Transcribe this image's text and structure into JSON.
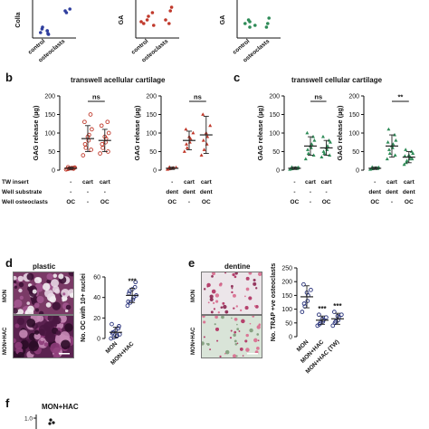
{
  "colors": {
    "red": "#c0392b",
    "green": "#2e8b57",
    "blue": "#2f3e9e",
    "navy": "#27317a"
  },
  "panels": {
    "a": {
      "ylabel_fragments": [
        "Colla",
        "GA",
        "GA"
      ]
    },
    "b": {
      "label": "b",
      "title": "transwell acellular cartilage"
    },
    "c": {
      "label": "c",
      "title": "transwell cellular cartilage"
    },
    "d": {
      "label": "d",
      "title": "plastic",
      "mic_labels": [
        "MON",
        "MON+HAC"
      ]
    },
    "e": {
      "label": "e",
      "title": "dentine",
      "mic_labels": [
        "MON",
        "MON+HAC"
      ]
    },
    "f": {
      "label": "f",
      "title": "MON+HAC",
      "tick": "1.0"
    }
  },
  "table_rows": [
    "TW insert",
    "Well substrate",
    "Well osteoclasts"
  ],
  "chart_data": [
    {
      "type": "scatter",
      "id": "a1",
      "categories": [
        "control",
        "osteoclasts"
      ],
      "color": "#2f3e9e",
      "ylabel": "Colla",
      "points": [
        [
          1.0,
          1.5
        ],
        [
          1.2,
          2.0
        ],
        [
          0.8,
          2.5
        ],
        [
          1.1,
          1.0
        ],
        [
          0.9,
          2.0
        ],
        [
          1.3,
          1.2
        ],
        [
          1.0,
          3.0
        ],
        [
          2.0,
          7.5
        ],
        [
          2.1,
          8.0
        ],
        [
          1.9,
          7.0
        ]
      ],
      "ylim": [
        0,
        10
      ]
    },
    {
      "type": "scatter",
      "id": "a2",
      "categories": [
        "control",
        "osteoclasts"
      ],
      "color": "#c0392b",
      "ylabel": "GA",
      "points": [
        [
          1.0,
          4.0
        ],
        [
          1.1,
          6.0
        ],
        [
          0.9,
          5.0
        ],
        [
          1.2,
          3.5
        ],
        [
          1.0,
          7.0
        ],
        [
          0.8,
          4.5
        ],
        [
          2.0,
          5.0
        ],
        [
          2.1,
          7.5
        ],
        [
          1.9,
          4.0
        ],
        [
          2.0,
          8.5
        ]
      ],
      "ylim": [
        0,
        10
      ]
    },
    {
      "type": "scatter",
      "id": "a3",
      "categories": [
        "control",
        "osteoclasts"
      ],
      "color": "#2e8b57",
      "ylabel": "GA",
      "points": [
        [
          1.0,
          4.0
        ],
        [
          1.1,
          3.0
        ],
        [
          0.9,
          5.0
        ],
        [
          1.2,
          3.5
        ],
        [
          0.8,
          4.5
        ],
        [
          2.0,
          3.0
        ],
        [
          2.1,
          5.5
        ],
        [
          1.9,
          4.0
        ]
      ],
      "ylim": [
        0,
        10
      ]
    },
    {
      "type": "scatter",
      "id": "b1",
      "ylabel": "GAG release (µg)",
      "ylim": [
        0,
        200
      ],
      "color": "#c0392b",
      "groups": [
        {
          "x": 1,
          "mean": 5,
          "sd": 3,
          "values": [
            2,
            4,
            5,
            6,
            7,
            3,
            8,
            5,
            4,
            6
          ]
        },
        {
          "x": 2,
          "mean": 85,
          "sd": 35,
          "values": [
            40,
            60,
            80,
            95,
            110,
            130,
            70,
            90,
            150,
            55
          ]
        },
        {
          "x": 3,
          "mean": 80,
          "sd": 30,
          "values": [
            45,
            60,
            75,
            85,
            100,
            120,
            70,
            90,
            130,
            50
          ]
        }
      ],
      "significance": [
        {
          "from": 2,
          "to": 3,
          "label": "ns"
        }
      ],
      "conditions": [
        [
          "-",
          "cart",
          "cart"
        ],
        [
          "-",
          "-",
          "-"
        ],
        [
          "OC",
          "-",
          "OC"
        ]
      ]
    },
    {
      "type": "scatter",
      "id": "b2",
      "ylabel": "GAG release (µg)",
      "ylim": [
        0,
        200
      ],
      "color": "#c0392b",
      "groups": [
        {
          "x": 1,
          "mean": 5,
          "sd": 3,
          "values": [
            2,
            4,
            5,
            6,
            7,
            3,
            8,
            5
          ]
        },
        {
          "x": 2,
          "mean": 80,
          "sd": 25,
          "values": [
            50,
            60,
            75,
            85,
            100,
            110,
            70,
            90
          ]
        },
        {
          "x": 3,
          "mean": 95,
          "sd": 50,
          "values": [
            40,
            55,
            70,
            90,
            120,
            150,
            80,
            100
          ]
        }
      ],
      "significance": [
        {
          "from": 2,
          "to": 3,
          "label": "ns"
        }
      ],
      "conditions": [
        [
          "-",
          "cart",
          "cart"
        ],
        [
          "dent",
          "dent",
          "dent"
        ],
        [
          "OC",
          "-",
          "OC"
        ]
      ]
    },
    {
      "type": "scatter",
      "id": "c1",
      "ylabel": "GAG release (µg)",
      "ylim": [
        0,
        200
      ],
      "color": "#2e8b57",
      "groups": [
        {
          "x": 1,
          "mean": 5,
          "sd": 3,
          "values": [
            2,
            4,
            5,
            6,
            7,
            3,
            8,
            5,
            4,
            6
          ]
        },
        {
          "x": 2,
          "mean": 65,
          "sd": 25,
          "values": [
            30,
            45,
            60,
            70,
            80,
            100,
            55,
            65,
            90,
            40
          ]
        },
        {
          "x": 3,
          "mean": 60,
          "sd": 20,
          "values": [
            35,
            45,
            55,
            65,
            75,
            90,
            50,
            60,
            80,
            40
          ]
        }
      ],
      "significance": [
        {
          "from": 2,
          "to": 3,
          "label": "ns"
        }
      ],
      "conditions": [
        [
          "-",
          "cart",
          "cart"
        ],
        [
          "-",
          "-",
          "-"
        ],
        [
          "OC",
          "-",
          "OC"
        ]
      ]
    },
    {
      "type": "scatter",
      "id": "c2",
      "ylabel": "GAG release (µg)",
      "ylim": [
        0,
        200
      ],
      "color": "#2e8b57",
      "groups": [
        {
          "x": 1,
          "mean": 5,
          "sd": 3,
          "values": [
            2,
            4,
            5,
            6,
            7,
            3,
            8,
            5,
            4,
            6
          ]
        },
        {
          "x": 2,
          "mean": 65,
          "sd": 30,
          "values": [
            30,
            45,
            60,
            70,
            80,
            110,
            55,
            65,
            95,
            40,
            75
          ]
        },
        {
          "x": 3,
          "mean": 35,
          "sd": 15,
          "values": [
            15,
            25,
            30,
            35,
            45,
            55,
            20,
            40,
            50,
            30,
            38
          ]
        }
      ],
      "significance": [
        {
          "from": 2,
          "to": 3,
          "label": "**"
        }
      ],
      "conditions": [
        [
          "-",
          "cart",
          "cart"
        ],
        [
          "dent",
          "dent",
          "dent"
        ],
        [
          "OC",
          "-",
          "OC"
        ]
      ]
    },
    {
      "type": "scatter",
      "id": "d",
      "ylabel": "No. OC with 10+ nuclei",
      "ylim": [
        0,
        60
      ],
      "color": "#27317a",
      "categories": [
        "MON",
        "MON+HAC"
      ],
      "groups": [
        {
          "x": 1,
          "mean": 6,
          "sd": 5,
          "values": [
            0,
            1,
            2,
            3,
            4,
            5,
            6,
            8,
            10,
            12,
            14
          ]
        },
        {
          "x": 2,
          "mean": 42,
          "sd": 7,
          "values": [
            32,
            35,
            38,
            40,
            42,
            44,
            46,
            48,
            50,
            55,
            36
          ]
        }
      ],
      "stars": [
        {
          "x": 2,
          "label": "***"
        }
      ]
    },
    {
      "type": "scatter",
      "id": "e",
      "ylabel": "No. TRAP +ve osteoclasts",
      "ylim": [
        0,
        250
      ],
      "color": "#27317a",
      "categories": [
        "MON",
        "MON+HAC",
        "MON+HAC (TW)"
      ],
      "groups": [
        {
          "x": 1,
          "mean": 145,
          "sd": 40,
          "values": [
            90,
            110,
            130,
            150,
            170,
            190,
            120,
            160
          ]
        },
        {
          "x": 2,
          "mean": 60,
          "sd": 15,
          "values": [
            40,
            50,
            55,
            60,
            70,
            80,
            45,
            65
          ]
        },
        {
          "x": 3,
          "mean": 65,
          "sd": 20,
          "values": [
            40,
            55,
            60,
            70,
            80,
            90,
            50,
            75
          ]
        }
      ],
      "stars": [
        {
          "x": 2,
          "label": "***"
        },
        {
          "x": 3,
          "label": "***"
        }
      ]
    }
  ]
}
